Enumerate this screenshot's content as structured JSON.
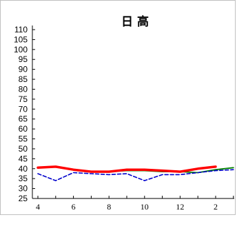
{
  "chart_data": {
    "type": "line",
    "title": "日 高",
    "xlabel": "",
    "ylabel": "",
    "ylim": [
      25,
      110
    ],
    "yticks": [
      25,
      30,
      35,
      40,
      45,
      50,
      55,
      60,
      65,
      70,
      75,
      80,
      85,
      90,
      95,
      100,
      105,
      110
    ],
    "xticks": [
      4,
      6,
      8,
      10,
      12,
      2
    ],
    "x": [
      4,
      5,
      6,
      7,
      8,
      9,
      10,
      11,
      12,
      1,
      2,
      3
    ],
    "grid": false,
    "legend": "none",
    "series": [
      {
        "color": "#ff0000",
        "style": "solid-thick",
        "values": [
          40.5,
          41,
          39.5,
          38.5,
          38.5,
          39.5,
          39.5,
          39,
          38.5,
          40,
          41,
          null
        ]
      },
      {
        "color": "#008000",
        "style": "solid",
        "values": [
          null,
          null,
          null,
          38.5,
          38.5,
          39,
          39,
          38.5,
          38.5,
          38,
          39.5,
          40.5
        ]
      },
      {
        "color": "#0000cc",
        "style": "dashed",
        "values": [
          37.5,
          34,
          38,
          37.5,
          37,
          37.5,
          34,
          37,
          37,
          38,
          39,
          39.5
        ]
      }
    ]
  }
}
